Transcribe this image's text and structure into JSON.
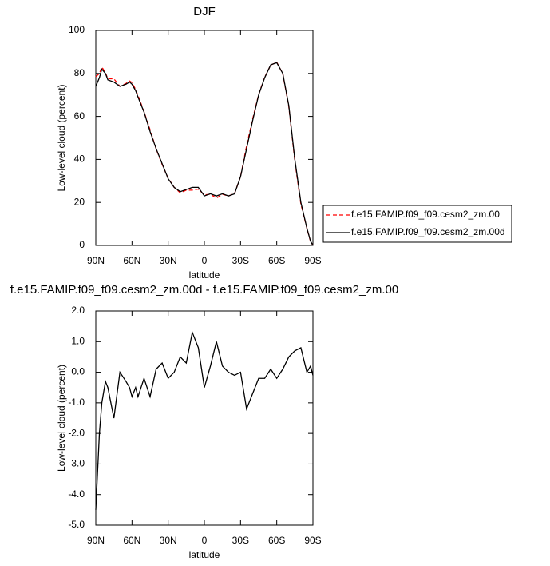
{
  "chart_data": [
    {
      "type": "line",
      "title": "DJF",
      "x_label": "latitude",
      "y_label": "Low-level cloud (percent)",
      "x": [
        90,
        87,
        85,
        82,
        80,
        75,
        70,
        65,
        62,
        60,
        57,
        55,
        50,
        45,
        40,
        35,
        30,
        25,
        20,
        15,
        10,
        5,
        0,
        -5,
        -10,
        -15,
        -20,
        -25,
        -30,
        -35,
        -40,
        -45,
        -50,
        -55,
        -60,
        -65,
        -70,
        -75,
        -80,
        -85,
        -88,
        -90
      ],
      "series": [
        {
          "name": "f.e15.FAMIP.f09_f09.cesm2_zm.00",
          "color": "#ff0000",
          "line_style": "dashed",
          "values": [
            78.5,
            80,
            83,
            80.3,
            77.5,
            77.5,
            74,
            75.3,
            76.5,
            75.8,
            72.5,
            69.8,
            62.2,
            53.8,
            44.9,
            37.7,
            31.2,
            27,
            24.5,
            25.7,
            25.7,
            26.2,
            23.5,
            23.8,
            22,
            23.8,
            23,
            24.1,
            32,
            46.2,
            58.7,
            70.2,
            78.2,
            83.9,
            85.2,
            79.9,
            64.5,
            39.3,
            19.2,
            8,
            1.8,
            0.1
          ]
        },
        {
          "name": "f.e15.FAMIP.f09_f09.cesm2_zm.00d",
          "color": "#000000",
          "line_style": "solid",
          "values": [
            74,
            78,
            82,
            80,
            77,
            76,
            74,
            75,
            76,
            75,
            72,
            69,
            62,
            53,
            45,
            38,
            31,
            27,
            25,
            26,
            27,
            27,
            23,
            24,
            23,
            24,
            23,
            24,
            32,
            45,
            58,
            70,
            78,
            84,
            85,
            80,
            65,
            40,
            20,
            8,
            2,
            0
          ]
        }
      ],
      "xlim": [
        90,
        -90
      ],
      "xticks": [
        {
          "value": 90,
          "label": "90N"
        },
        {
          "value": 60,
          "label": "60N"
        },
        {
          "value": 30,
          "label": "30N"
        },
        0,
        {
          "value": -30,
          "label": "30S"
        },
        {
          "value": -60,
          "label": "60S"
        },
        {
          "value": -90,
          "label": "90S"
        }
      ],
      "ylim": [
        0,
        100
      ],
      "yticks": [
        0,
        20,
        40,
        60,
        80,
        100
      ],
      "legend": "right"
    },
    {
      "type": "line",
      "title": "f.e15.FAMIP.f09_f09.cesm2_zm.00d - f.e15.FAMIP.f09_f09.cesm2_zm.00",
      "x_label": "latitude",
      "y_label": "Low-level cloud (percent)",
      "x": [
        90,
        87,
        85,
        82,
        80,
        75,
        70,
        65,
        62,
        60,
        57,
        55,
        50,
        45,
        40,
        35,
        30,
        25,
        20,
        15,
        10,
        5,
        0,
        -5,
        -10,
        -15,
        -20,
        -25,
        -30,
        -35,
        -40,
        -45,
        -50,
        -55,
        -60,
        -65,
        -70,
        -75,
        -80,
        -85,
        -88,
        -90
      ],
      "color": "#000000",
      "values": [
        -4.5,
        -2,
        -1,
        -0.3,
        -0.5,
        -1.5,
        0,
        -0.3,
        -0.5,
        -0.8,
        -0.5,
        -0.8,
        -0.2,
        -0.8,
        0.1,
        0.3,
        -0.2,
        0,
        0.5,
        0.3,
        1.3,
        0.8,
        -0.5,
        0.2,
        1.0,
        0.2,
        0,
        -0.1,
        0,
        -1.2,
        -0.7,
        -0.2,
        -0.2,
        0.1,
        -0.2,
        0.1,
        0.5,
        0.7,
        0.8,
        0,
        0.2,
        -0.1
      ],
      "xlim": [
        90,
        -90
      ],
      "xticks": [
        {
          "value": 90,
          "label": "90N"
        },
        {
          "value": 60,
          "label": "60N"
        },
        {
          "value": 30,
          "label": "30N"
        },
        0,
        {
          "value": -30,
          "label": "30S"
        },
        {
          "value": -60,
          "label": "60S"
        },
        {
          "value": -90,
          "label": "90S"
        }
      ],
      "ylim": [
        -5,
        2
      ],
      "yticks": [
        {
          "value": -5,
          "label": "-5.0"
        },
        {
          "value": -4,
          "label": "-4.0"
        },
        {
          "value": -3,
          "label": "-3.0"
        },
        {
          "value": -2,
          "label": "-2.0"
        },
        {
          "value": -1,
          "label": "-1.0"
        },
        {
          "value": 0,
          "label": "0.0"
        },
        {
          "value": 1,
          "label": "1.0"
        },
        {
          "value": 2,
          "label": "2.0"
        }
      ]
    }
  ]
}
